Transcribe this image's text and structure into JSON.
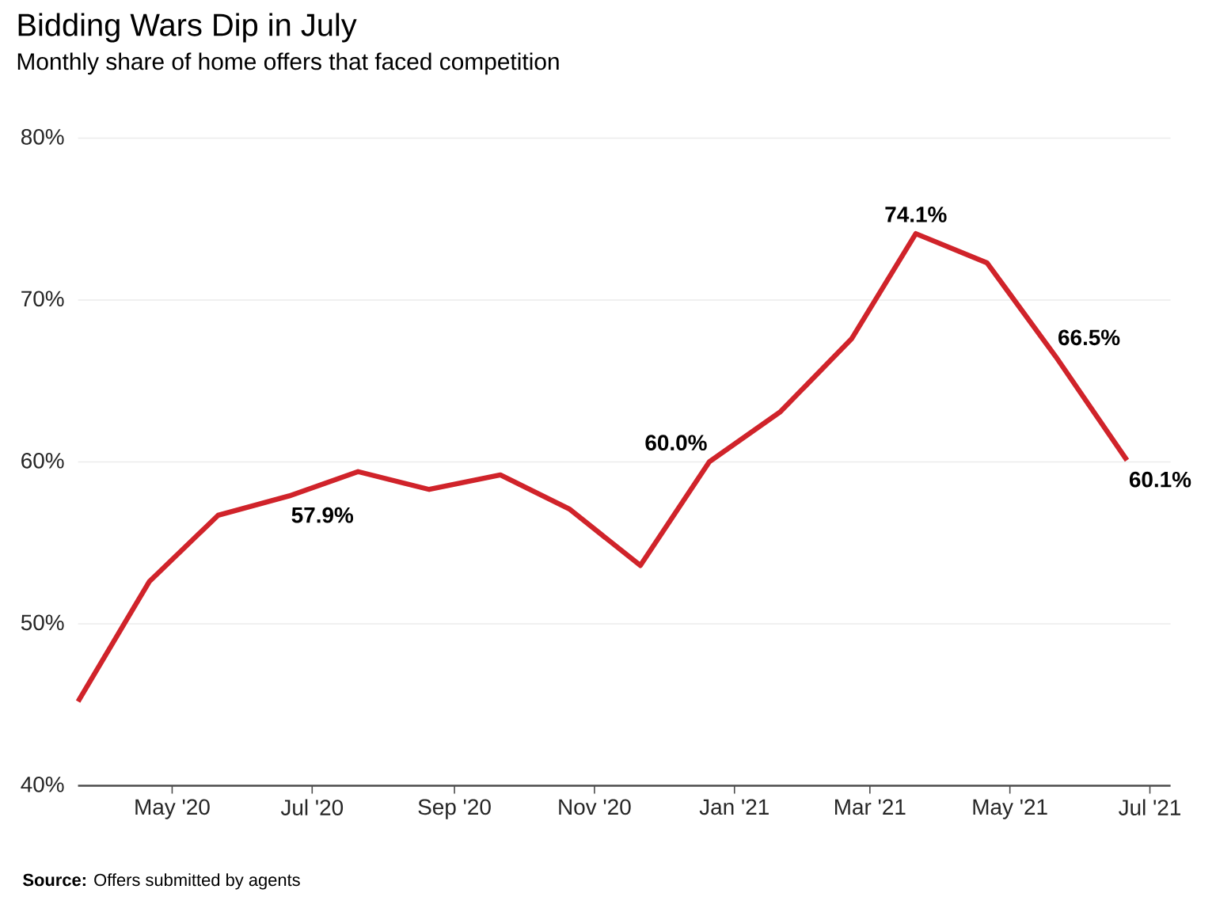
{
  "chart_data": {
    "type": "line",
    "title": "Bidding Wars Dip in July",
    "subtitle": "Monthly share of home offers that faced competition",
    "annotations": [
      "**Source:** Offers submitted by agents"
    ],
    "x": [
      "2020-03-21",
      "2020-04-21",
      "2020-05-21",
      "2020-06-21",
      "2020-07-21",
      "2020-08-21",
      "2020-09-21",
      "2020-10-21",
      "2020-11-21",
      "2020-12-21",
      "2021-01-21",
      "2021-02-21",
      "2021-03-21",
      "2021-04-21",
      "2021-05-21",
      "2021-06-21"
    ],
    "series": [
      {
        "color": "#d0232a",
        "values": [
          45.2,
          52.6,
          56.7,
          57.9,
          59.4,
          58.3,
          59.2,
          57.1,
          53.6,
          60.0,
          63.1,
          67.6,
          74.1,
          72.3,
          66.5,
          60.1
        ],
        "value_labels": [
          null,
          null,
          null,
          "57.9%",
          null,
          null,
          null,
          null,
          null,
          "60.0%",
          null,
          null,
          "74.1%",
          null,
          "66.5%",
          "60.1%"
        ]
      }
    ],
    "xlim": [
      "2020-03-21",
      "2021-07-10"
    ],
    "xticks": [
      {
        "value": "2020-05-01",
        "label": "May '20"
      },
      {
        "value": "2020-07-01",
        "label": "Jul '20"
      },
      {
        "value": "2020-09-01",
        "label": "Sep '20"
      },
      {
        "value": "2020-11-01",
        "label": "Nov '20"
      },
      {
        "value": "2021-01-01",
        "label": "Jan '21"
      },
      {
        "value": "2021-03-01",
        "label": "Mar '21"
      },
      {
        "value": "2021-05-01",
        "label": "May '21"
      },
      {
        "value": "2021-07-01",
        "label": "Jul '21"
      }
    ],
    "ylim": [
      40,
      80
    ],
    "yticks": [
      {
        "value": 40,
        "label": "40%"
      },
      {
        "value": 50,
        "label": "50%"
      },
      {
        "value": 60,
        "label": "60%"
      },
      {
        "value": 70,
        "label": "70%"
      },
      {
        "value": 80,
        "label": "80%"
      }
    ],
    "grid": "y",
    "line_style": "solid"
  }
}
